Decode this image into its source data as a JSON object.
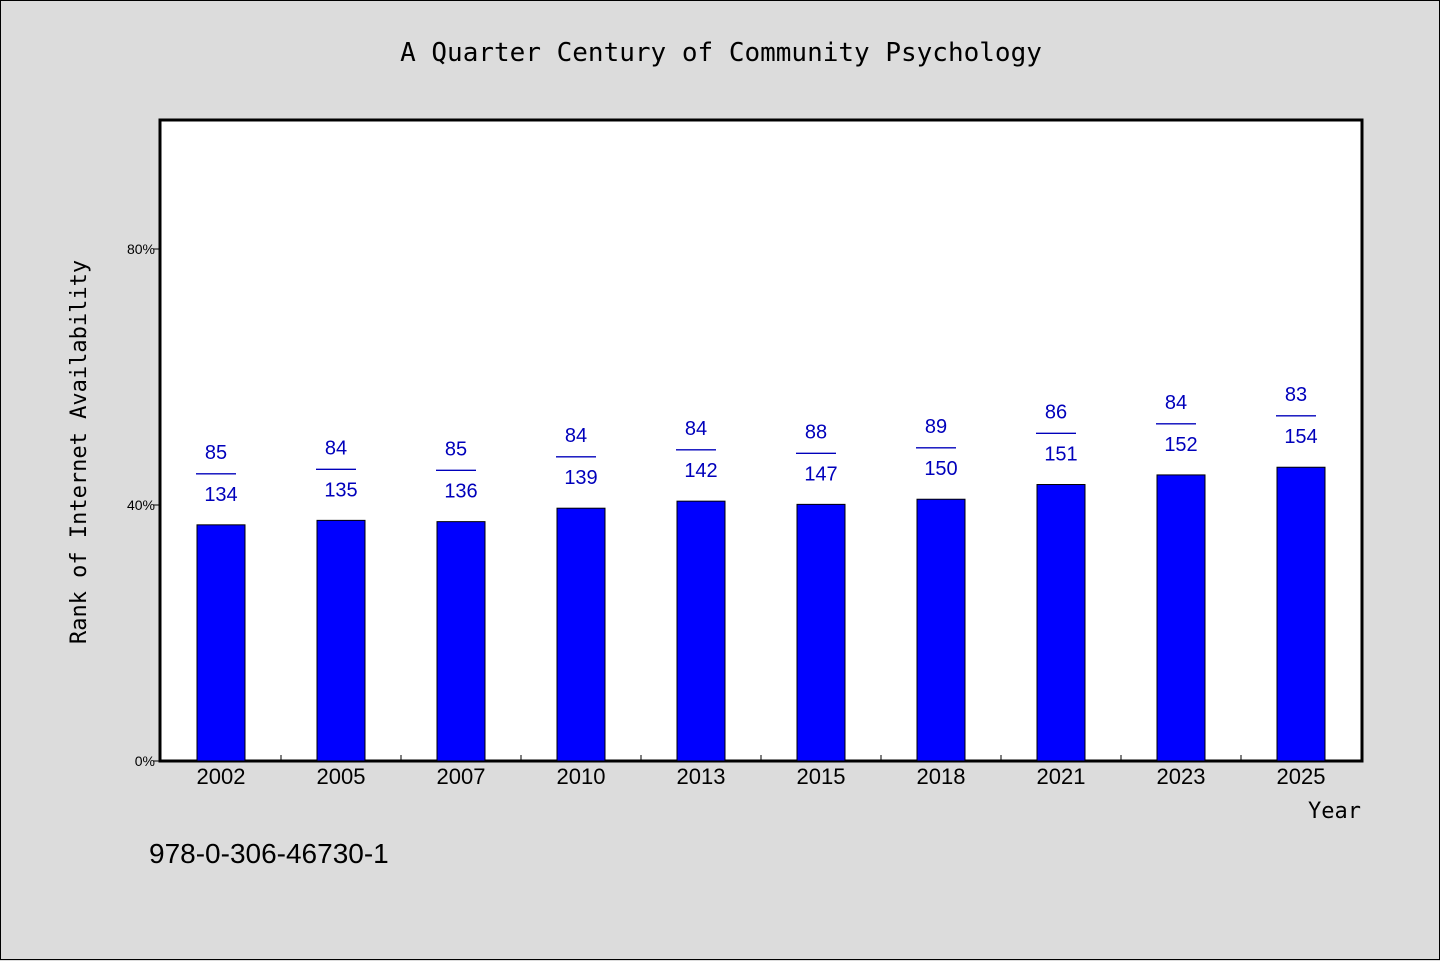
{
  "chart_data": {
    "type": "bar",
    "title": "A Quarter Century of Community Psychology",
    "xlabel": "Year",
    "ylabel": "Rank of Internet Availability",
    "categories": [
      "2002",
      "2005",
      "2007",
      "2010",
      "2013",
      "2015",
      "2018",
      "2021",
      "2023",
      "2025"
    ],
    "values": [
      36.9,
      37.6,
      37.4,
      39.5,
      40.6,
      40.1,
      40.9,
      43.2,
      44.7,
      45.9
    ],
    "rank": [
      "85",
      "84",
      "85",
      "84",
      "84",
      "88",
      "89",
      "86",
      "84",
      "83"
    ],
    "total": [
      "134",
      "135",
      "136",
      "139",
      "142",
      "147",
      "150",
      "151",
      "152",
      "154"
    ],
    "label_separator": "——",
    "yticks": [
      {
        "value": 0,
        "label": "0%"
      },
      {
        "value": 40,
        "label": "40%"
      },
      {
        "value": 80,
        "label": "80%"
      }
    ],
    "ylim": [
      0,
      100
    ],
    "bar_color": "#0000ff",
    "label_color": "#0000bb",
    "grid": false,
    "legend": "none"
  },
  "footer": {
    "isbn": "978-0-306-46730-1"
  }
}
